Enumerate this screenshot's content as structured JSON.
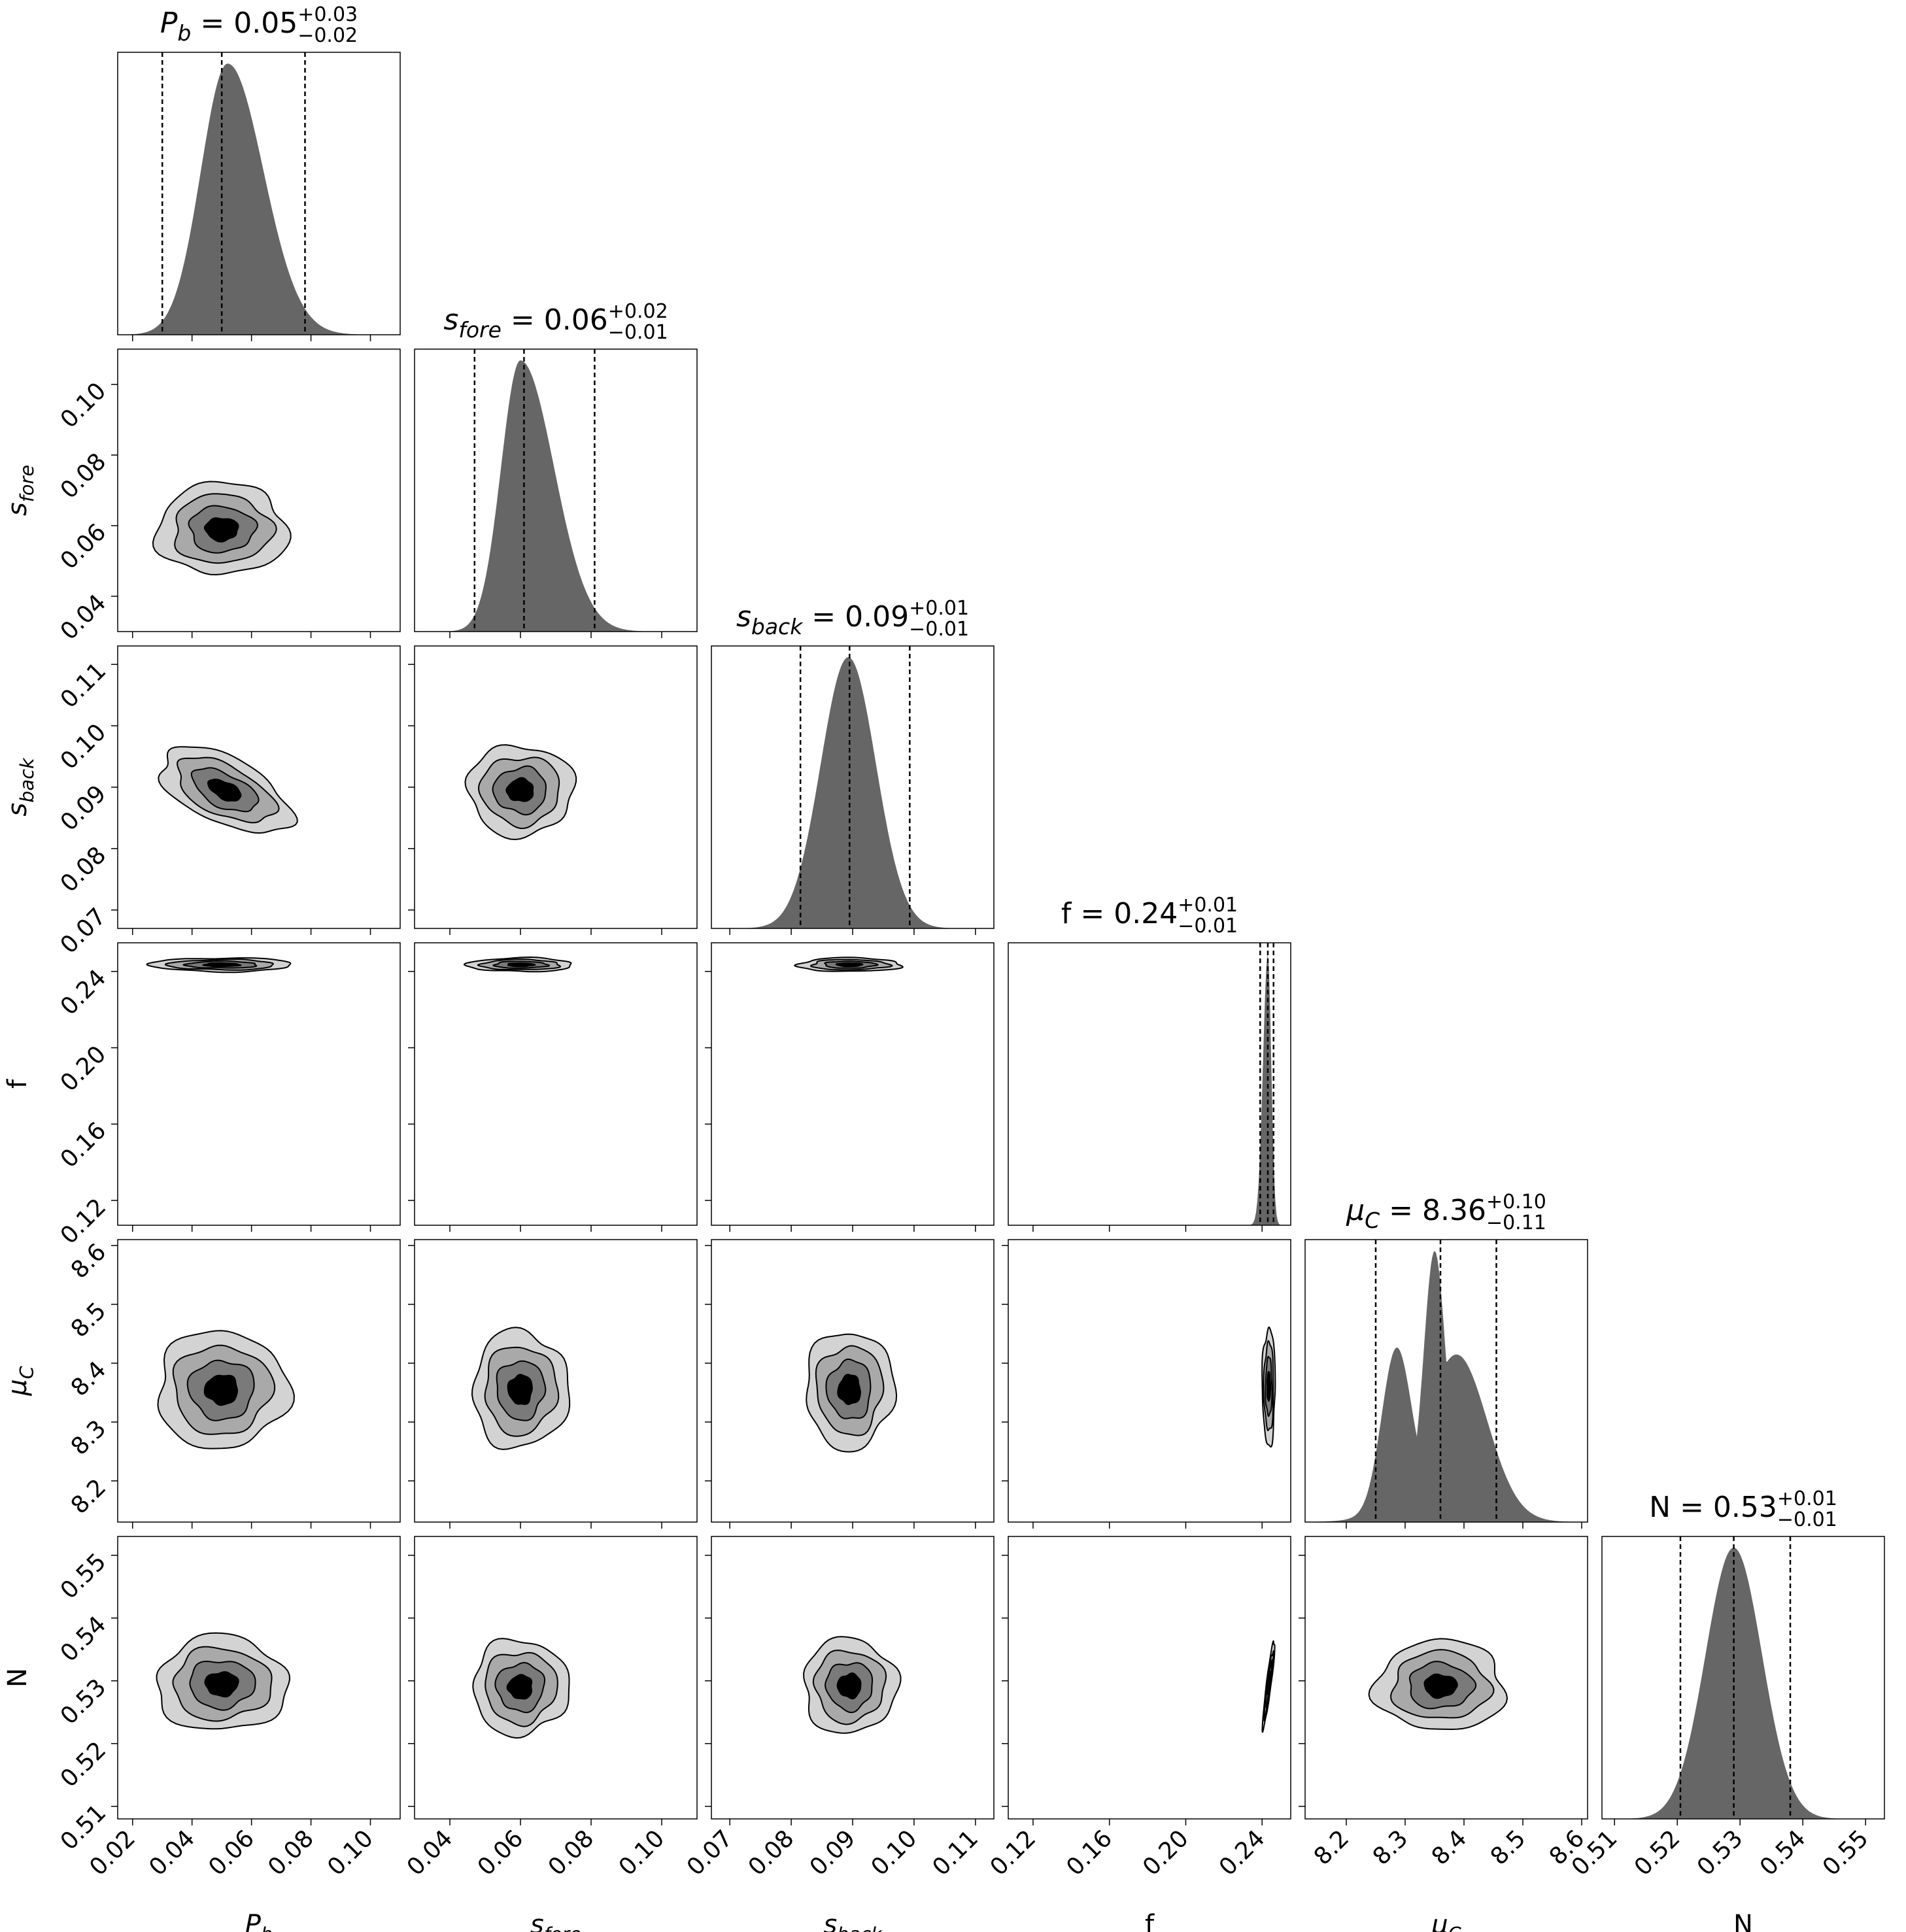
{
  "chart_data": {
    "type": "corner",
    "colors": {
      "hist_fill": "#666666",
      "contour_levels": [
        "#d3d3d3",
        "#a9a9a9",
        "#7a7a7a",
        "#000000"
      ],
      "contour_line": "#000000",
      "quantile_line": "#000000"
    },
    "parameters": [
      {
        "id": "Pb",
        "title": {
          "sym": "P",
          "sub": "b",
          "median": "0.05",
          "plus": "+0.03",
          "minus": "−0.02"
        },
        "axis_label": {
          "sym": "P",
          "sub": "b"
        },
        "range": [
          0.015,
          0.11
        ],
        "ticks": [
          0.02,
          0.04,
          0.06,
          0.08,
          0.1
        ],
        "tick_labels": [
          "0.02",
          "0.04",
          "0.06",
          "0.08",
          "0.10"
        ],
        "quantiles": [
          0.03,
          0.05,
          0.078
        ],
        "mode": 0.052,
        "sigma_left": 0.009,
        "sigma_right": 0.012
      },
      {
        "id": "sfore",
        "title": {
          "sym": "s",
          "sub": "fore",
          "median": "0.06",
          "plus": "+0.02",
          "minus": "−0.01"
        },
        "axis_label": {
          "sym": "s",
          "sub": "fore"
        },
        "range": [
          0.03,
          0.11
        ],
        "ticks": [
          0.04,
          0.06,
          0.08,
          0.1
        ],
        "tick_labels": [
          "0.04",
          "0.06",
          "0.08",
          "0.10"
        ],
        "quantiles": [
          0.047,
          0.061,
          0.081
        ],
        "mode": 0.06,
        "sigma_left": 0.0055,
        "sigma_right": 0.0095
      },
      {
        "id": "sback",
        "title": {
          "sym": "s",
          "sub": "back",
          "median": "0.09",
          "plus": "+0.01",
          "minus": "−0.01"
        },
        "axis_label": {
          "sym": "s",
          "sub": "back"
        },
        "range": [
          0.067,
          0.113
        ],
        "ticks": [
          0.07,
          0.08,
          0.09,
          0.1,
          0.11
        ],
        "tick_labels": [
          "0.07",
          "0.08",
          "0.09",
          "0.10",
          "0.11"
        ],
        "quantiles": [
          0.0815,
          0.0895,
          0.0993
        ],
        "mode": 0.0893,
        "sigma_left": 0.0045,
        "sigma_right": 0.0045
      },
      {
        "id": "f",
        "title": {
          "sym": "f",
          "sub": "",
          "median": "0.24",
          "plus": "+0.01",
          "minus": "−0.01"
        },
        "axis_label": {
          "sym": "f",
          "sub": ""
        },
        "range": [
          0.107,
          0.255
        ],
        "ticks": [
          0.12,
          0.16,
          0.2,
          0.24
        ],
        "tick_labels": [
          "0.12",
          "0.16",
          "0.20",
          "0.24"
        ],
        "quantiles": [
          0.239,
          0.243,
          0.246
        ],
        "mode": 0.243,
        "sigma_left": 0.0025,
        "sigma_right": 0.0018
      },
      {
        "id": "muC",
        "title": {
          "sym": "μ",
          "sub": "C",
          "median": "8.36",
          "plus": "+0.10",
          "minus": "−0.11"
        },
        "axis_label": {
          "sym": "μ",
          "sub": "C"
        },
        "range": [
          8.13,
          8.61
        ],
        "ticks": [
          8.2,
          8.3,
          8.4,
          8.5,
          8.6
        ],
        "tick_labels": [
          "8.2",
          "8.3",
          "8.4",
          "8.5",
          "8.6"
        ],
        "quantiles": [
          8.25,
          8.36,
          8.455
        ],
        "mode": 8.35,
        "sigma_left": 0.045,
        "sigma_right": 0.045
      },
      {
        "id": "N",
        "title": {
          "sym": "N",
          "sub": "",
          "median": "0.53",
          "plus": "+0.01",
          "minus": "−0.01"
        },
        "axis_label": {
          "sym": "N",
          "sub": ""
        },
        "range": [
          0.508,
          0.553
        ],
        "ticks": [
          0.51,
          0.52,
          0.53,
          0.54,
          0.55
        ],
        "tick_labels": [
          "0.51",
          "0.52",
          "0.53",
          "0.54",
          "0.55"
        ],
        "quantiles": [
          0.5205,
          0.529,
          0.538
        ],
        "mode": 0.529,
        "sigma_left": 0.0045,
        "sigma_right": 0.0045
      }
    ],
    "hist_extra": {
      "muC": [
        {
          "center": 8.285,
          "sigma": 0.025,
          "weight": 0.62
        },
        {
          "center": 8.39,
          "sigma": 0.05,
          "weight": 0.55
        }
      ]
    },
    "pairs": [
      {
        "x": "Pb",
        "y": "sfore",
        "cx": 0.05,
        "cy": 0.059,
        "sx": 0.011,
        "sy": 0.0065,
        "rho": 0.0
      },
      {
        "x": "Pb",
        "y": "sback",
        "cx": 0.051,
        "cy": 0.0895,
        "sx": 0.011,
        "sy": 0.0035,
        "rho": -0.55
      },
      {
        "x": "sfore",
        "y": "sback",
        "cx": 0.06,
        "cy": 0.0895,
        "sx": 0.0075,
        "sy": 0.0037,
        "rho": 0.0
      },
      {
        "x": "Pb",
        "y": "f",
        "cx": 0.05,
        "cy": 0.2435,
        "sx": 0.012,
        "sy": 0.0018,
        "rho": 0.0
      },
      {
        "x": "sfore",
        "y": "f",
        "cx": 0.06,
        "cy": 0.2435,
        "sx": 0.0075,
        "sy": 0.0018,
        "rho": 0.0
      },
      {
        "x": "sback",
        "y": "f",
        "cx": 0.0895,
        "cy": 0.2435,
        "sx": 0.0042,
        "sy": 0.0018,
        "rho": 0.0
      },
      {
        "x": "Pb",
        "y": "muC",
        "cx": 0.05,
        "cy": 8.355,
        "sx": 0.011,
        "sy": 0.05,
        "rho": 0.0
      },
      {
        "x": "sfore",
        "y": "muC",
        "cx": 0.06,
        "cy": 8.355,
        "sx": 0.0068,
        "sy": 0.05,
        "rho": 0.0
      },
      {
        "x": "sback",
        "y": "muC",
        "cx": 0.0895,
        "cy": 8.355,
        "sx": 0.0036,
        "sy": 0.05,
        "rho": 0.0
      },
      {
        "x": "f",
        "y": "muC",
        "cx": 0.2435,
        "cy": 8.36,
        "sx": 0.0017,
        "sy": 0.05,
        "rho": 0.0
      },
      {
        "x": "Pb",
        "y": "N",
        "cx": 0.05,
        "cy": 0.5295,
        "sx": 0.011,
        "sy": 0.0038,
        "rho": 0.0
      },
      {
        "x": "sfore",
        "y": "N",
        "cx": 0.06,
        "cy": 0.529,
        "sx": 0.0068,
        "sy": 0.0038,
        "rho": 0.0
      },
      {
        "x": "sback",
        "y": "N",
        "cx": 0.0895,
        "cy": 0.5292,
        "sx": 0.0038,
        "sy": 0.0038,
        "rho": 0.0
      },
      {
        "x": "f",
        "y": "N",
        "cx": 0.2435,
        "cy": 0.5295,
        "sx": 0.0016,
        "sy": 0.0035,
        "rho": 0.92
      },
      {
        "x": "muC",
        "y": "N",
        "cx": 8.36,
        "cy": 0.5292,
        "sx": 0.055,
        "sy": 0.0036,
        "rho": 0.0
      }
    ],
    "contour_sigma_levels": [
      0.5,
      1.0,
      1.5,
      2.0
    ],
    "grid": false,
    "legend": "none"
  }
}
